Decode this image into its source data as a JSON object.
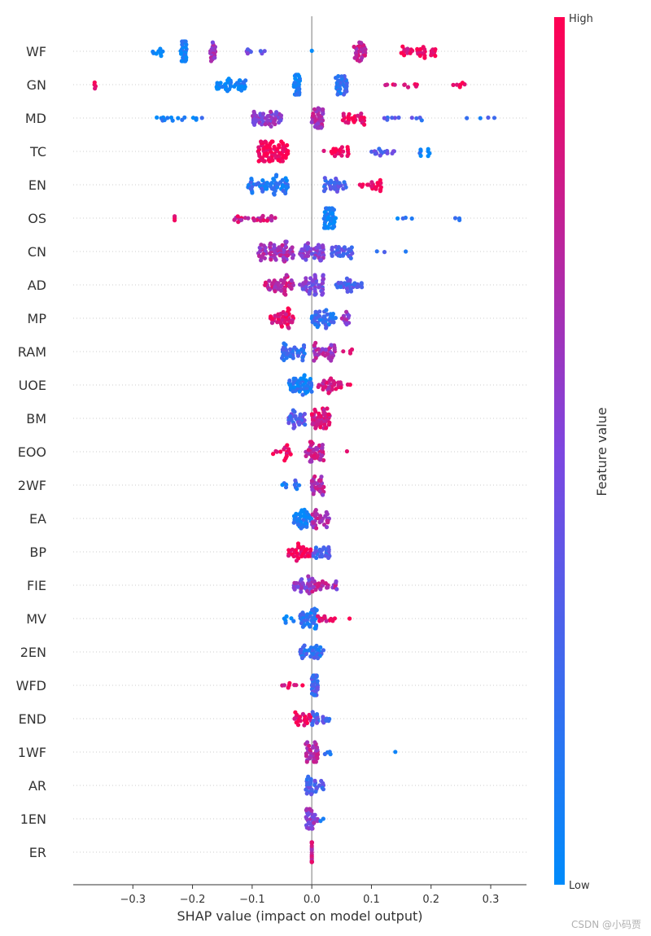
{
  "chart_data": {
    "type": "scatter",
    "subtype": "shap-beeswarm-summary",
    "xlabel": "SHAP value (impact on model output)",
    "xlim": [
      -0.4,
      0.36
    ],
    "xticks": [
      -0.3,
      -0.2,
      -0.1,
      0.0,
      0.1,
      0.2,
      0.3
    ],
    "xtick_labels": [
      "−0.3",
      "−0.2",
      "−0.1",
      "0.0",
      "0.1",
      "0.2",
      "0.3"
    ],
    "colorbar": {
      "label": "Feature value",
      "high_label": "High",
      "low_label": "Low",
      "low_color": "#008bfb",
      "high_color": "#ff0052"
    },
    "features": [
      {
        "name": "WF",
        "clusters": [
          [
            -0.27,
            -0.25,
            8,
            0.0
          ],
          [
            -0.22,
            -0.21,
            30,
            0.1
          ],
          [
            -0.17,
            -0.16,
            18,
            0.6
          ],
          [
            -0.12,
            -0.07,
            8,
            0.4
          ],
          [
            0.0,
            0.0,
            1,
            0.0
          ],
          [
            0.07,
            0.09,
            30,
            0.75
          ],
          [
            0.15,
            0.19,
            25,
            0.9
          ],
          [
            0.2,
            0.21,
            8,
            1.0
          ]
        ]
      },
      {
        "name": "GN",
        "clusters": [
          [
            -0.365,
            -0.362,
            4,
            1.0
          ],
          [
            -0.16,
            -0.11,
            40,
            0.05
          ],
          [
            -0.03,
            -0.02,
            35,
            0.05
          ],
          [
            0.04,
            0.06,
            35,
            0.2
          ],
          [
            0.12,
            0.18,
            10,
            0.95
          ],
          [
            0.22,
            0.27,
            6,
            1.0
          ]
        ]
      },
      {
        "name": "MD",
        "clusters": [
          [
            -0.26,
            -0.17,
            15,
            0.1
          ],
          [
            -0.1,
            -0.05,
            50,
            0.55
          ],
          [
            0.0,
            0.02,
            35,
            0.7
          ],
          [
            0.05,
            0.09,
            25,
            0.95
          ],
          [
            0.12,
            0.2,
            10,
            0.3
          ],
          [
            0.25,
            0.32,
            4,
            0.2
          ]
        ]
      },
      {
        "name": "TC",
        "clusters": [
          [
            -0.09,
            -0.04,
            80,
            1.0
          ],
          [
            0.02,
            0.07,
            20,
            0.95
          ],
          [
            0.1,
            0.14,
            15,
            0.35
          ],
          [
            0.18,
            0.2,
            8,
            0.1
          ]
        ]
      },
      {
        "name": "EN",
        "clusters": [
          [
            -0.11,
            -0.04,
            60,
            0.15
          ],
          [
            0.02,
            0.06,
            30,
            0.3
          ],
          [
            0.08,
            0.12,
            20,
            0.98
          ]
        ]
      },
      {
        "name": "OS",
        "clusters": [
          [
            -0.23,
            -0.23,
            3,
            1.0
          ],
          [
            -0.13,
            -0.06,
            25,
            0.8
          ],
          [
            0.02,
            0.04,
            40,
            0.05
          ],
          [
            0.12,
            0.18,
            4,
            0.1
          ],
          [
            0.24,
            0.25,
            3,
            0.1
          ]
        ]
      },
      {
        "name": "CN",
        "clusters": [
          [
            -0.09,
            -0.03,
            70,
            0.65
          ],
          [
            -0.02,
            0.02,
            45,
            0.5
          ],
          [
            0.03,
            0.07,
            30,
            0.35
          ],
          [
            0.09,
            0.16,
            3,
            0.2
          ]
        ]
      },
      {
        "name": "AD",
        "clusters": [
          [
            -0.08,
            -0.03,
            45,
            0.75
          ],
          [
            -0.02,
            0.02,
            45,
            0.5
          ],
          [
            0.04,
            0.09,
            30,
            0.3
          ]
        ]
      },
      {
        "name": "MP",
        "clusters": [
          [
            -0.07,
            -0.03,
            40,
            0.9
          ],
          [
            0.0,
            0.04,
            45,
            0.2
          ],
          [
            0.05,
            0.07,
            12,
            0.6
          ]
        ]
      },
      {
        "name": "RAM",
        "clusters": [
          [
            -0.05,
            -0.01,
            40,
            0.2
          ],
          [
            0.0,
            0.04,
            35,
            0.65
          ],
          [
            0.05,
            0.07,
            4,
            0.95
          ]
        ]
      },
      {
        "name": "UOE",
        "clusters": [
          [
            -0.04,
            0.0,
            50,
            0.1
          ],
          [
            0.01,
            0.05,
            30,
            0.8
          ],
          [
            0.06,
            0.07,
            2,
            0.95
          ]
        ]
      },
      {
        "name": "BM",
        "clusters": [
          [
            -0.04,
            -0.01,
            30,
            0.35
          ],
          [
            0.0,
            0.03,
            50,
            0.85
          ]
        ]
      },
      {
        "name": "EOO",
        "clusters": [
          [
            -0.07,
            -0.03,
            15,
            0.95
          ],
          [
            -0.01,
            0.02,
            40,
            0.75
          ],
          [
            0.05,
            0.06,
            1,
            0.95
          ]
        ]
      },
      {
        "name": "2WF",
        "clusters": [
          [
            -0.05,
            -0.04,
            4,
            0.05
          ],
          [
            -0.03,
            -0.02,
            6,
            0.2
          ],
          [
            0.0,
            0.02,
            30,
            0.7
          ]
        ]
      },
      {
        "name": "EA",
        "clusters": [
          [
            -0.03,
            0.0,
            40,
            0.1
          ],
          [
            0.0,
            0.03,
            30,
            0.7
          ]
        ]
      },
      {
        "name": "BP",
        "clusters": [
          [
            -0.04,
            0.0,
            35,
            0.95
          ],
          [
            0.0,
            0.03,
            25,
            0.3
          ]
        ]
      },
      {
        "name": "FIE",
        "clusters": [
          [
            -0.03,
            0.0,
            30,
            0.55
          ],
          [
            0.0,
            0.04,
            25,
            0.7
          ],
          [
            0.04,
            0.05,
            3,
            0.5
          ]
        ]
      },
      {
        "name": "MV",
        "clusters": [
          [
            -0.05,
            -0.03,
            6,
            0.05
          ],
          [
            -0.02,
            0.01,
            40,
            0.15
          ],
          [
            0.01,
            0.04,
            12,
            0.9
          ],
          [
            0.06,
            0.065,
            1,
            0.95
          ]
        ]
      },
      {
        "name": "2EN",
        "clusters": [
          [
            -0.02,
            0.02,
            35,
            0.2
          ]
        ]
      },
      {
        "name": "WFD",
        "clusters": [
          [
            -0.05,
            -0.01,
            8,
            0.9
          ],
          [
            0.0,
            0.01,
            30,
            0.3
          ]
        ]
      },
      {
        "name": "END",
        "clusters": [
          [
            -0.03,
            0.0,
            25,
            0.9
          ],
          [
            0.0,
            0.03,
            20,
            0.3
          ]
        ]
      },
      {
        "name": "1WF",
        "clusters": [
          [
            -0.01,
            0.01,
            35,
            0.7
          ],
          [
            0.02,
            0.05,
            4,
            0.1
          ],
          [
            0.14,
            0.14,
            1,
            0.1
          ]
        ]
      },
      {
        "name": "AR",
        "clusters": [
          [
            -0.01,
            0.02,
            30,
            0.3
          ]
        ]
      },
      {
        "name": "1EN",
        "clusters": [
          [
            -0.01,
            0.01,
            30,
            0.55
          ],
          [
            0.01,
            0.02,
            2,
            0.1
          ]
        ]
      },
      {
        "name": "ER",
        "clusters": [
          [
            0.0,
            0.0,
            25,
            0.8
          ]
        ]
      }
    ]
  },
  "watermark": "CSDN @小码贾"
}
